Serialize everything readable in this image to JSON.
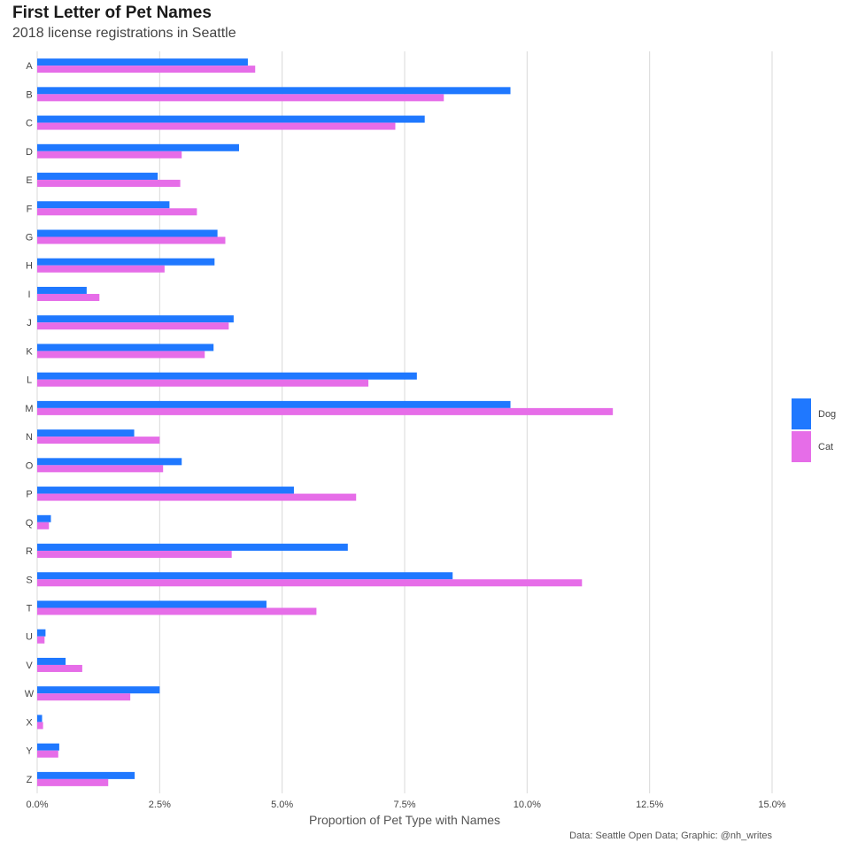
{
  "title": "First Letter of Pet Names",
  "subtitle": "2018 license registrations in Seattle",
  "caption": "Data: Seattle Open Data; Graphic: @nh_writes",
  "chart_data": {
    "type": "bar",
    "orientation": "horizontal",
    "xlabel": "Proportion of Pet Type with Names",
    "ylabel": "",
    "xlim": [
      0,
      0.15
    ],
    "x_ticks": [
      0,
      0.025,
      0.05,
      0.075,
      0.1,
      0.125,
      0.15
    ],
    "x_tick_labels": [
      "0.0%",
      "2.5%",
      "5.0%",
      "7.5%",
      "10.0%",
      "12.5%",
      "15.0%"
    ],
    "grid": "vertical major",
    "legend_position": "right",
    "categories": [
      "A",
      "B",
      "C",
      "D",
      "E",
      "F",
      "G",
      "H",
      "I",
      "J",
      "K",
      "L",
      "M",
      "N",
      "O",
      "P",
      "Q",
      "R",
      "S",
      "T",
      "U",
      "V",
      "W",
      "X",
      "Y",
      "Z"
    ],
    "series": [
      {
        "name": "Dog",
        "color": "#1f78ff",
        "values": [
          0.043,
          0.0966,
          0.0791,
          0.0412,
          0.0246,
          0.027,
          0.0368,
          0.0362,
          0.0101,
          0.0401,
          0.036,
          0.0775,
          0.0966,
          0.0198,
          0.0295,
          0.0524,
          0.0028,
          0.0634,
          0.0848,
          0.0468,
          0.0017,
          0.0058,
          0.025,
          0.001,
          0.0045,
          0.0199
        ]
      },
      {
        "name": "Cat",
        "color": "#e66de8",
        "values": [
          0.0445,
          0.083,
          0.0731,
          0.0295,
          0.0292,
          0.0326,
          0.0384,
          0.026,
          0.0127,
          0.0391,
          0.0342,
          0.0676,
          0.1175,
          0.025,
          0.0257,
          0.0651,
          0.0024,
          0.0397,
          0.1112,
          0.057,
          0.0015,
          0.0092,
          0.019,
          0.0012,
          0.0043,
          0.0145
        ]
      }
    ]
  }
}
